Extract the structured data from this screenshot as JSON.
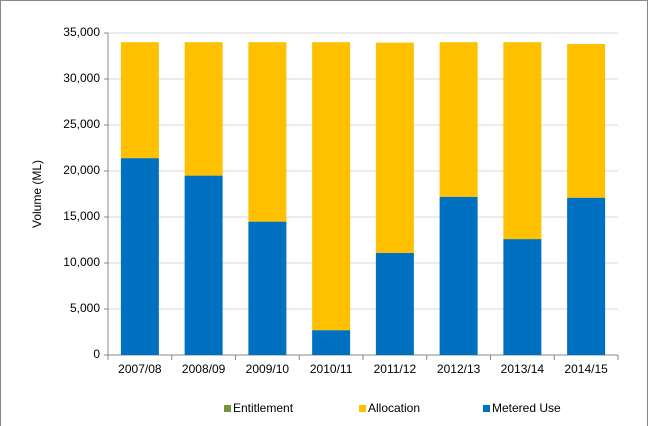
{
  "chart_data": {
    "type": "stacked_bar",
    "categories": [
      "2007/08",
      "2008/09",
      "2009/10",
      "2010/11",
      "2011/12",
      "2012/13",
      "2013/14",
      "2014/15"
    ],
    "y_label": "Volume (ML)",
    "series": [
      {
        "name": "Metered Use",
        "color": "#0070c0",
        "values": [
          21400,
          19500,
          14500,
          2700,
          11100,
          17200,
          12600,
          17100
        ]
      },
      {
        "name": "Allocation",
        "color": "#ffc000",
        "values": [
          12600,
          14500,
          19500,
          31300,
          22850,
          16800,
          21400,
          16700
        ]
      },
      {
        "name": "Entitlement",
        "color": "#77933c",
        "values": [
          null,
          null,
          null,
          null,
          null,
          null,
          null,
          null
        ]
      }
    ],
    "legend_order": [
      2,
      1,
      0
    ],
    "ylim": [
      0,
      35000
    ],
    "yticks": [
      0,
      {
        "value": 5000,
        "label": "5,000"
      },
      {
        "value": 10000,
        "label": "10,000"
      },
      {
        "value": 15000,
        "label": "15,000"
      },
      {
        "value": 20000,
        "label": "20,000"
      },
      {
        "value": 25000,
        "label": "25,000"
      },
      {
        "value": 30000,
        "label": "30,000"
      },
      {
        "value": 35000,
        "label": "35,000"
      }
    ],
    "grid": true,
    "legend": "bottom"
  }
}
